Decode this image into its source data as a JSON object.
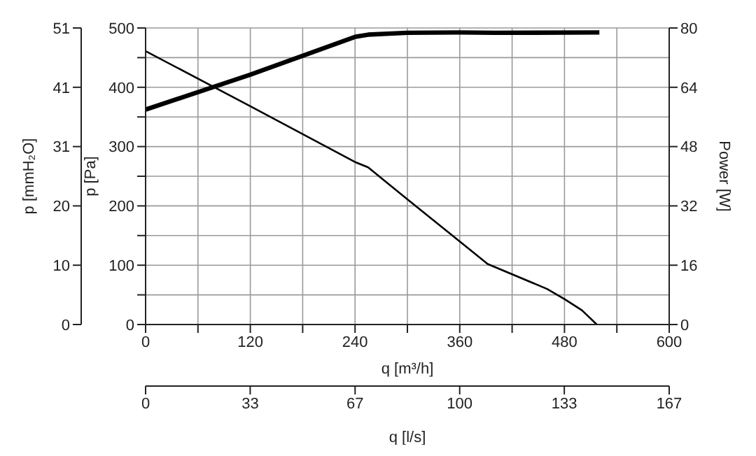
{
  "chart_data": {
    "type": "line",
    "xlabel": "q [m³/h]",
    "ylabel": "p [Pa]",
    "y2label": "Power [W]",
    "y3label": "p [mmH₂O]",
    "x2label": "q [l/s]",
    "xlim": [
      0,
      600
    ],
    "xticks": [
      0,
      {
        "value": 60,
        "label": null
      },
      120,
      {
        "value": 180,
        "label": null
      },
      240,
      {
        "value": 300,
        "label": null
      },
      360,
      {
        "value": 420,
        "label": null
      },
      480,
      {
        "value": 540,
        "label": null
      },
      600
    ],
    "ylim": [
      0,
      500
    ],
    "yticks": [
      0,
      {
        "value": 50,
        "label": null
      },
      100,
      {
        "value": 150,
        "label": null
      },
      200,
      {
        "value": 250,
        "label": null
      },
      300,
      {
        "value": 350,
        "label": null
      },
      400,
      {
        "value": 450,
        "label": null
      },
      500
    ],
    "y2lim": [
      0,
      80
    ],
    "y2ticks": [
      0,
      16,
      32,
      48,
      64,
      80
    ],
    "y3lim": [
      0,
      51
    ],
    "y3ticks": [
      0,
      {
        "value": 10.2,
        "label": "10"
      },
      {
        "value": 20.4,
        "label": "20"
      },
      {
        "value": 30.6,
        "label": "31"
      },
      {
        "value": 40.8,
        "label": "41"
      },
      51
    ],
    "x2lim": [
      0,
      166.7
    ],
    "x2ticks": [
      0,
      {
        "value": 33.3,
        "label": "33"
      },
      {
        "value": 66.7,
        "label": "67"
      },
      100,
      {
        "value": 133.3,
        "label": "133"
      },
      {
        "value": 166.7,
        "label": "167"
      }
    ],
    "grid": true,
    "marker": "none",
    "series": [
      {
        "color": "#000000",
        "x": [
          0,
          120,
          240,
          255,
          300,
          360,
          392,
          460,
          480,
          500,
          517
        ],
        "values": [
          461,
          368,
          274,
          265,
          211,
          140,
          102,
          60,
          43,
          24,
          0
        ]
      },
      {
        "color": "#000000",
        "axis": "y2",
        "x": [
          0,
          120,
          240,
          255,
          300,
          360,
          400,
          520
        ],
        "values": [
          58,
          67.4,
          77.6,
          78.2,
          78.7,
          78.8,
          78.7,
          78.8
        ]
      }
    ]
  }
}
